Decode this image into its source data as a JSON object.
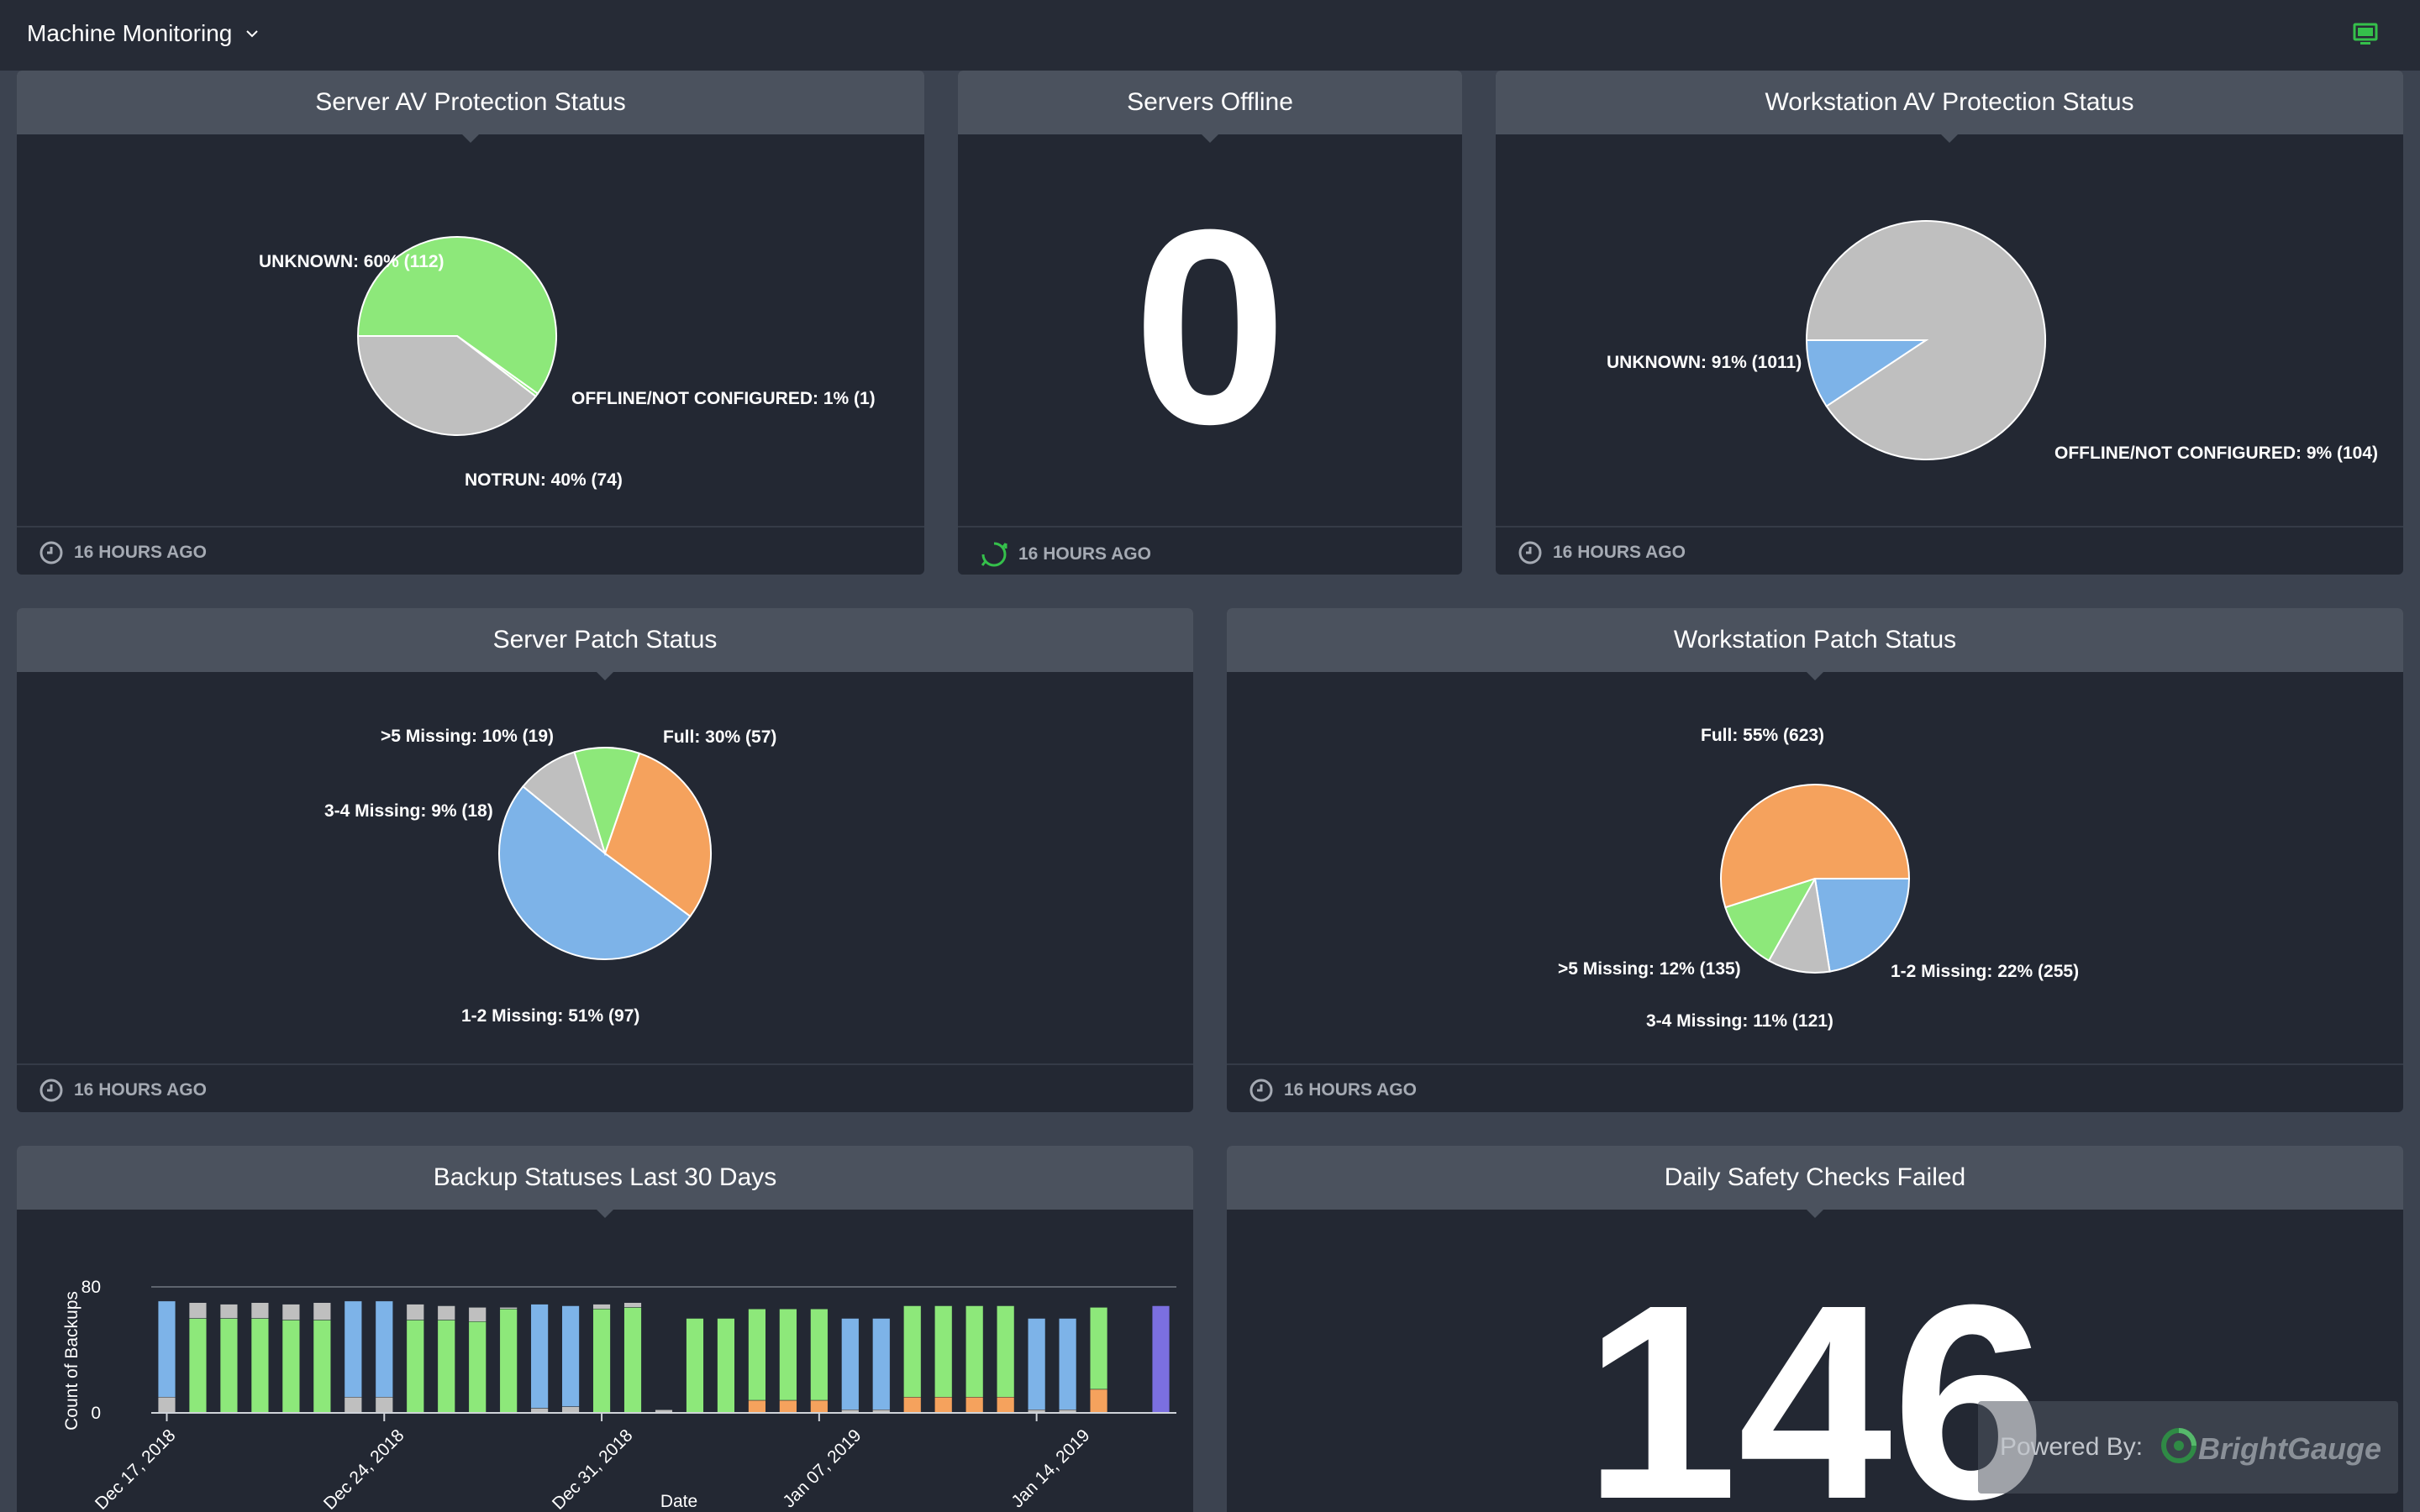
{
  "header": {
    "dashboard_name": "Machine Monitoring",
    "dropdown_icon": "chevron-down-icon",
    "display_icon": "monitor-icon"
  },
  "colors": {
    "green": "#8de87a",
    "gray": "#bfbfbf",
    "blue": "#7db3e8",
    "orange": "#f5a25d",
    "purple": "#7b6fe0",
    "accent_green": "#35c04b"
  },
  "cards": {
    "server_av": {
      "title": "Server AV Protection Status",
      "updated": "16 HOURS AGO",
      "labels": {
        "unknown": "UNKNOWN: 60% (112)",
        "offline": "OFFLINE/NOT CONFIGURED: 1% (1)",
        "notrun": "NOTRUN: 40% (74)"
      }
    },
    "servers_offline": {
      "title": "Servers Offline",
      "value": "0",
      "updated": "16 HOURS AGO"
    },
    "workstation_av": {
      "title": "Workstation AV Protection Status",
      "updated": "16 HOURS AGO",
      "labels": {
        "unknown": "UNKNOWN: 91% (1011)",
        "offline": "OFFLINE/NOT CONFIGURED: 9% (104)"
      }
    },
    "server_patch": {
      "title": "Server Patch Status",
      "updated": "16 HOURS AGO",
      "labels": {
        "gt5": ">5 Missing: 10% (19)",
        "full": "Full: 30% (57)",
        "m34": "3-4 Missing: 9% (18)",
        "m12": "1-2 Missing: 51% (97)"
      }
    },
    "workstation_patch": {
      "title": "Workstation Patch Status",
      "updated": "16 HOURS AGO",
      "labels": {
        "full": "Full: 55% (623)",
        "gt5": ">5 Missing: 12% (135)",
        "m12": "1-2 Missing: 22% (255)",
        "m34": "3-4 Missing: 11% (121)"
      }
    },
    "backup": {
      "title": "Backup Statuses Last 30 Days"
    },
    "safety": {
      "title": "Daily Safety Checks Failed",
      "value": "146"
    }
  },
  "pies": {
    "server_av": [
      {
        "name": "UNKNOWN",
        "value": 112,
        "color": "#8de87a"
      },
      {
        "name": "OFFLINE/NOT CONFIGURED",
        "value": 1,
        "color": "#8de87a"
      },
      {
        "name": "NOTRUN",
        "value": 74,
        "color": "#bfbfbf"
      }
    ],
    "workstation_av": [
      {
        "name": "UNKNOWN",
        "value": 1011,
        "color": "#bfbfbf"
      },
      {
        "name": "OFFLINE/NOT CONFIGURED",
        "value": 104,
        "color": "#7db3e8"
      }
    ],
    "server_patch": [
      {
        "name": "Full",
        "value": 57,
        "color": "#f5a25d"
      },
      {
        "name": "1-2 Missing",
        "value": 97,
        "color": "#7db3e8"
      },
      {
        "name": "3-4 Missing",
        "value": 18,
        "color": "#bfbfbf"
      },
      {
        "name": ">5 Missing",
        "value": 19,
        "color": "#8de87a"
      }
    ],
    "workstation_patch": [
      {
        "name": "1-2 Missing",
        "value": 255,
        "color": "#7db3e8"
      },
      {
        "name": "3-4 Missing",
        "value": 121,
        "color": "#bfbfbf"
      },
      {
        "name": ">5 Missing",
        "value": 135,
        "color": "#8de87a"
      },
      {
        "name": "Full",
        "value": 623,
        "color": "#f5a25d"
      }
    ]
  },
  "chart_data": {
    "type": "bar",
    "stacked": true,
    "xlabel": "Date",
    "ylabel": "Count of Backups",
    "ylim": [
      0,
      80
    ],
    "yticks": [
      "80",
      "0"
    ],
    "xticks": [
      "Dec 17, 2018",
      "Dec 24, 2018",
      "Dec 31, 2018",
      "Jan 07, 2019",
      "Jan 14, 2019"
    ],
    "categories": [
      "Dec 17",
      "Dec 18",
      "Dec 19",
      "Dec 20",
      "Dec 21",
      "Dec 22",
      "Dec 23",
      "Dec 24",
      "Dec 25",
      "Dec 26",
      "Dec 27",
      "Dec 28",
      "Dec 29",
      "Dec 30",
      "Dec 31",
      "Jan 01",
      "Jan 02",
      "Jan 03",
      "Jan 04",
      "Jan 05",
      "Jan 06",
      "Jan 07",
      "Jan 08",
      "Jan 09",
      "Jan 10",
      "Jan 11",
      "Jan 12",
      "Jan 13",
      "Jan 14",
      "Jan 15",
      "Jan 16",
      "Jan 17",
      "Jan 18"
    ],
    "series": [
      {
        "color": "#f5a25d",
        "values": [
          0,
          0,
          0,
          0,
          0,
          0,
          0,
          0,
          0,
          0,
          0,
          0,
          0,
          0,
          0,
          0,
          0,
          0,
          0,
          8,
          8,
          8,
          0,
          0,
          10,
          10,
          10,
          10,
          0,
          0,
          15,
          0,
          0
        ]
      },
      {
        "color": "#8de87a",
        "values": [
          0,
          60,
          60,
          60,
          59,
          59,
          0,
          0,
          59,
          59,
          58,
          66,
          0,
          0,
          66,
          67,
          0,
          60,
          60,
          58,
          58,
          58,
          0,
          0,
          58,
          58,
          58,
          58,
          0,
          0,
          52,
          0,
          0
        ]
      },
      {
        "color": "#bfbfbf",
        "values": [
          10,
          10,
          9,
          10,
          10,
          11,
          10,
          10,
          10,
          9,
          9,
          1,
          3,
          4,
          3,
          3,
          2,
          0,
          0,
          0,
          0,
          0,
          2,
          2,
          0,
          0,
          0,
          0,
          2,
          2,
          0,
          0,
          0
        ]
      },
      {
        "color": "#7db3e8",
        "values": [
          61,
          0,
          0,
          0,
          0,
          0,
          61,
          61,
          0,
          0,
          0,
          0,
          66,
          64,
          0,
          0,
          0,
          0,
          0,
          0,
          0,
          0,
          58,
          58,
          0,
          0,
          0,
          0,
          58,
          58,
          0,
          0,
          0
        ]
      },
      {
        "color": "#7b6fe0",
        "values": [
          0,
          0,
          0,
          0,
          0,
          0,
          0,
          0,
          0,
          0,
          0,
          0,
          0,
          0,
          0,
          0,
          0,
          0,
          0,
          0,
          0,
          0,
          0,
          0,
          0,
          0,
          0,
          0,
          0,
          0,
          0,
          0,
          68
        ]
      }
    ]
  },
  "branding": {
    "powered_by": "Powered By:",
    "name": "BrightGauge"
  }
}
